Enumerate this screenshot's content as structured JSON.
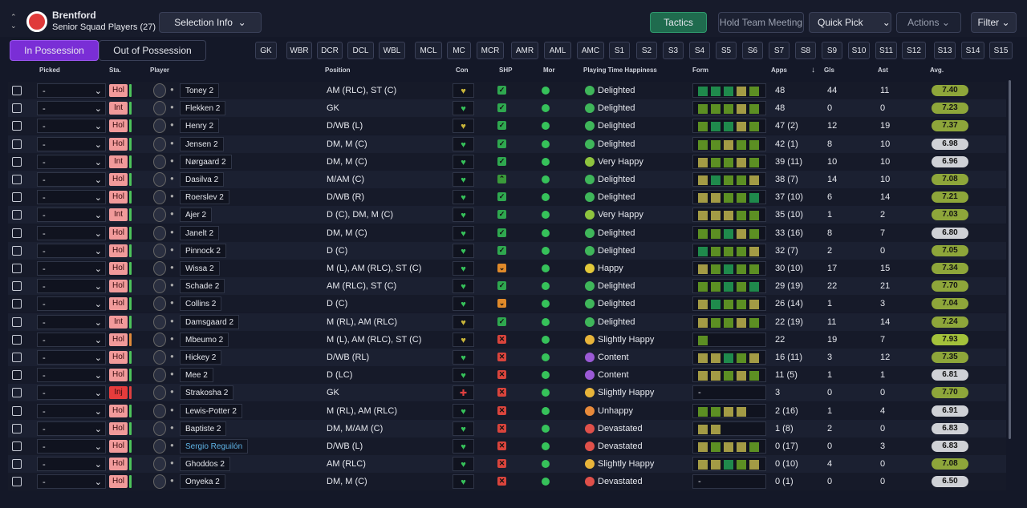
{
  "header": {
    "club": "Brentford",
    "subtitle": "Senior Squad Players (27)"
  },
  "buttons": {
    "selection_info": "Selection Info",
    "tactics": "Tactics",
    "hold_team_meeting": "Hold Team Meeting",
    "quick_pick": "Quick Pick",
    "actions": "Actions",
    "filter": "Filter"
  },
  "tabs": [
    "In Possession",
    "Out of Possession"
  ],
  "positions": [
    "GK",
    "WBR",
    "DCR",
    "DCL",
    "WBL",
    "MCL",
    "MC",
    "MCR",
    "AMR",
    "AML",
    "AMC",
    "S1",
    "S2",
    "S3",
    "S4",
    "S5",
    "S6",
    "S7",
    "S8",
    "S9",
    "S10",
    "S11",
    "S12",
    "S13",
    "S14",
    "S15"
  ],
  "columns": [
    "Picked",
    "Sta.",
    "Player",
    "Position",
    "Con",
    "SHP",
    "Mor",
    "Playing Time Happiness",
    "Form",
    "Apps",
    "Gls",
    "Ast",
    "Avg."
  ],
  "rows": [
    {
      "picked": "-",
      "status": "Hol",
      "status_color": "#f19a9a",
      "cond_color": "#4cc35a",
      "player": "Toney 2",
      "position": "AM (RLC), ST (C)",
      "con_color": "#c9b53a",
      "shp_color": "#2fa84f",
      "happiness": "Delighted",
      "mood_color": "#3fb65a",
      "form": [
        "#1f8a4c",
        "#1f8a4c",
        "#1f8a4c",
        "#a39b45",
        "#5c8f23"
      ],
      "apps": 48,
      "gls": 44,
      "ast": 11,
      "avg": "7.40",
      "avg_color": "#8ea63a"
    },
    {
      "picked": "-",
      "status": "Int",
      "status_color": "#f19a9a",
      "cond_color": "#4cc35a",
      "player": "Flekken 2",
      "position": "GK",
      "con_color": "#36c25a",
      "shp_color": "#2fa84f",
      "happiness": "Delighted",
      "mood_color": "#3fb65a",
      "form": [
        "#5c8f23",
        "#5c8f23",
        "#5c8f23",
        "#a39b45",
        "#5c8f23"
      ],
      "apps": 48,
      "gls": 0,
      "ast": 0,
      "avg": "7.23",
      "avg_color": "#8ea63a"
    },
    {
      "picked": "-",
      "status": "Hol",
      "status_color": "#f19a9a",
      "cond_color": "#4cc35a",
      "player": "Henry 2",
      "position": "D/WB (L)",
      "con_color": "#c9b53a",
      "shp_color": "#2fa84f",
      "happiness": "Delighted",
      "mood_color": "#3fb65a",
      "form": [
        "#5c8f23",
        "#1f8a4c",
        "#1f8a4c",
        "#a39b45",
        "#5c8f23"
      ],
      "apps": "47 (2)",
      "gls": 12,
      "ast": 19,
      "avg": "7.37",
      "avg_color": "#8ea63a"
    },
    {
      "picked": "-",
      "status": "Hol",
      "status_color": "#f19a9a",
      "cond_color": "#4cc35a",
      "player": "Jensen 2",
      "position": "DM, M (C)",
      "con_color": "#36c25a",
      "shp_color": "#2fa84f",
      "happiness": "Delighted",
      "mood_color": "#3fb65a",
      "form": [
        "#5c8f23",
        "#5c8f23",
        "#a39b45",
        "#5c8f23",
        "#5c8f23"
      ],
      "apps": "42 (1)",
      "gls": 8,
      "ast": 10,
      "avg": "6.98",
      "avg_color": "#cfd1d6"
    },
    {
      "picked": "-",
      "status": "Int",
      "status_color": "#f19a9a",
      "cond_color": "#4cc35a",
      "player": "Nørgaard 2",
      "position": "DM, M (C)",
      "con_color": "#36c25a",
      "shp_color": "#2fa84f",
      "happiness": "Very Happy",
      "mood_color": "#8fc43e",
      "form": [
        "#a39b45",
        "#5c8f23",
        "#5c8f23",
        "#a39b45",
        "#5c8f23"
      ],
      "apps": "39 (11)",
      "gls": 10,
      "ast": 10,
      "avg": "6.96",
      "avg_color": "#cfd1d6"
    },
    {
      "picked": "-",
      "status": "Hol",
      "status_color": "#f19a9a",
      "cond_color": "#4cc35a",
      "player": "Dasilva 2",
      "position": "M/AM (C)",
      "con_color": "#36c25a",
      "shp_color": "#3a9a3a",
      "happiness": "Delighted",
      "mood_color": "#3fb65a",
      "form": [
        "#a39b45",
        "#1f8a4c",
        "#5c8f23",
        "#5c8f23",
        "#a39b45"
      ],
      "apps": "38 (7)",
      "gls": 14,
      "ast": 10,
      "avg": "7.08",
      "avg_color": "#8ea63a"
    },
    {
      "picked": "-",
      "status": "Hol",
      "status_color": "#f19a9a",
      "cond_color": "#4cc35a",
      "player": "Roerslev 2",
      "position": "D/WB (R)",
      "con_color": "#36c25a",
      "shp_color": "#2fa84f",
      "happiness": "Delighted",
      "mood_color": "#3fb65a",
      "form": [
        "#a39b45",
        "#a39b45",
        "#5c8f23",
        "#5c8f23",
        "#1f8a4c"
      ],
      "apps": "37 (10)",
      "gls": 6,
      "ast": 14,
      "avg": "7.21",
      "avg_color": "#8ea63a"
    },
    {
      "picked": "-",
      "status": "Int",
      "status_color": "#f19a9a",
      "cond_color": "#4cc35a",
      "player": "Ajer 2",
      "position": "D (C), DM, M (C)",
      "con_color": "#36c25a",
      "shp_color": "#2fa84f",
      "happiness": "Very Happy",
      "mood_color": "#8fc43e",
      "form": [
        "#a39b45",
        "#a39b45",
        "#a39b45",
        "#5c8f23",
        "#5c8f23"
      ],
      "apps": "35 (10)",
      "gls": 1,
      "ast": 2,
      "avg": "7.03",
      "avg_color": "#8ea63a"
    },
    {
      "picked": "-",
      "status": "Hol",
      "status_color": "#f19a9a",
      "cond_color": "#4cc35a",
      "player": "Janelt 2",
      "position": "DM, M (C)",
      "con_color": "#36c25a",
      "shp_color": "#2fa84f",
      "happiness": "Delighted",
      "mood_color": "#3fb65a",
      "form": [
        "#5c8f23",
        "#5c8f23",
        "#1f8a4c",
        "#a39b45",
        "#5c8f23"
      ],
      "apps": "33 (16)",
      "gls": 8,
      "ast": 7,
      "avg": "6.80",
      "avg_color": "#cfd1d6"
    },
    {
      "picked": "-",
      "status": "Hol",
      "status_color": "#f19a9a",
      "cond_color": "#4cc35a",
      "player": "Pinnock 2",
      "position": "D (C)",
      "con_color": "#36c25a",
      "shp_color": "#2fa84f",
      "happiness": "Delighted",
      "mood_color": "#3fb65a",
      "form": [
        "#1f8a4c",
        "#5c8f23",
        "#5c8f23",
        "#5c8f23",
        "#a39b45"
      ],
      "apps": "32 (7)",
      "gls": 2,
      "ast": 0,
      "avg": "7.05",
      "avg_color": "#8ea63a"
    },
    {
      "picked": "-",
      "status": "Hol",
      "status_color": "#f19a9a",
      "cond_color": "#4cc35a",
      "player": "Wissa 2",
      "position": "M (L), AM (RLC), ST (C)",
      "con_color": "#36c25a",
      "shp_color": "#e08a2a",
      "happiness": "Happy",
      "mood_color": "#e3c93a",
      "form": [
        "#a39b45",
        "#5c8f23",
        "#1f8a4c",
        "#5c8f23",
        "#5c8f23"
      ],
      "apps": "30 (10)",
      "gls": 17,
      "ast": 15,
      "avg": "7.34",
      "avg_color": "#8ea63a"
    },
    {
      "picked": "-",
      "status": "Hol",
      "status_color": "#f19a9a",
      "cond_color": "#4cc35a",
      "player": "Schade 2",
      "position": "AM (RLC), ST (C)",
      "con_color": "#36c25a",
      "shp_color": "#2fa84f",
      "happiness": "Delighted",
      "mood_color": "#3fb65a",
      "form": [
        "#5c8f23",
        "#5c8f23",
        "#1f8a4c",
        "#5c8f23",
        "#1f8a4c"
      ],
      "apps": "29 (19)",
      "gls": 22,
      "ast": 21,
      "avg": "7.70",
      "avg_color": "#8ea63a"
    },
    {
      "picked": "-",
      "status": "Hol",
      "status_color": "#f19a9a",
      "cond_color": "#4cc35a",
      "player": "Collins 2",
      "position": "D (C)",
      "con_color": "#36c25a",
      "shp_color": "#e08a2a",
      "happiness": "Delighted",
      "mood_color": "#3fb65a",
      "form": [
        "#a39b45",
        "#1f8a4c",
        "#5c8f23",
        "#5c8f23",
        "#a39b45"
      ],
      "apps": "26 (14)",
      "gls": 1,
      "ast": 3,
      "avg": "7.04",
      "avg_color": "#8ea63a"
    },
    {
      "picked": "-",
      "status": "Int",
      "status_color": "#f19a9a",
      "cond_color": "#4cc35a",
      "player": "Damsgaard 2",
      "position": "M (RL), AM (RLC)",
      "con_color": "#c9b53a",
      "shp_color": "#2fa84f",
      "happiness": "Delighted",
      "mood_color": "#3fb65a",
      "form": [
        "#a39b45",
        "#5c8f23",
        "#5c8f23",
        "#a39b45",
        "#5c8f23"
      ],
      "apps": "22 (19)",
      "gls": 11,
      "ast": 14,
      "avg": "7.24",
      "avg_color": "#8ea63a"
    },
    {
      "picked": "-",
      "status": "Hol",
      "status_color": "#f19a9a",
      "cond_color": "#e08a3a",
      "player": "Mbeumo 2",
      "position": "M (L), AM (RLC), ST (C)",
      "con_color": "#c9b53a",
      "shp_color": "#d9443c",
      "happiness": "Slightly Happy",
      "mood_color": "#e8b43a",
      "form": [
        "#5c8f23"
      ],
      "apps": 22,
      "gls": 19,
      "ast": 7,
      "avg": "7.93",
      "avg_color": "#a4c23b"
    },
    {
      "picked": "-",
      "status": "Hol",
      "status_color": "#f19a9a",
      "cond_color": "#4cc35a",
      "player": "Hickey 2",
      "position": "D/WB (RL)",
      "con_color": "#36c25a",
      "shp_color": "#d9443c",
      "happiness": "Content",
      "mood_color": "#9b5ad6",
      "form": [
        "#a39b45",
        "#a39b45",
        "#1f8a4c",
        "#5c8f23",
        "#a39b45"
      ],
      "apps": "16 (11)",
      "gls": 3,
      "ast": 12,
      "avg": "7.35",
      "avg_color": "#8ea63a"
    },
    {
      "picked": "-",
      "status": "Hol",
      "status_color": "#f19a9a",
      "cond_color": "#4cc35a",
      "player": "Mee 2",
      "position": "D (LC)",
      "con_color": "#36c25a",
      "shp_color": "#d9443c",
      "happiness": "Content",
      "mood_color": "#9b5ad6",
      "form": [
        "#a39b45",
        "#a39b45",
        "#5c8f23",
        "#a39b45",
        "#5c8f23"
      ],
      "apps": "11 (5)",
      "gls": 1,
      "ast": 1,
      "avg": "6.81",
      "avg_color": "#cfd1d6"
    },
    {
      "picked": "-",
      "status": "Inj",
      "status_color": "#e63c3c",
      "cond_color": "#e04040",
      "player": "Strakosha 2",
      "position": "GK",
      "con_color": "#e04040",
      "shp_color": "#d9443c",
      "happiness": "Slightly Happy",
      "mood_color": "#e8b43a",
      "form": "-",
      "apps": 3,
      "gls": 0,
      "ast": 0,
      "avg": "7.70",
      "avg_color": "#8ea63a"
    },
    {
      "picked": "-",
      "status": "Hol",
      "status_color": "#f19a9a",
      "cond_color": "#4cc35a",
      "player": "Lewis-Potter 2",
      "position": "M (RL), AM (RLC)",
      "con_color": "#36c25a",
      "shp_color": "#d9443c",
      "happiness": "Unhappy",
      "mood_color": "#e88a3a",
      "form": [
        "#5c8f23",
        "#5c8f23",
        "#a39b45",
        "#a39b45"
      ],
      "apps": "2 (16)",
      "gls": 1,
      "ast": 4,
      "avg": "6.91",
      "avg_color": "#cfd1d6"
    },
    {
      "picked": "-",
      "status": "Hol",
      "status_color": "#f19a9a",
      "cond_color": "#4cc35a",
      "player": "Baptiste 2",
      "position": "DM, M/AM (C)",
      "con_color": "#36c25a",
      "shp_color": "#d9443c",
      "happiness": "Devastated",
      "mood_color": "#e0504a",
      "form": [
        "#a39b45",
        "#a39b45"
      ],
      "apps": "1 (8)",
      "gls": 2,
      "ast": 0,
      "avg": "6.83",
      "avg_color": "#cfd1d6"
    },
    {
      "picked": "-",
      "status": "Hol",
      "status_color": "#f19a9a",
      "cond_color": "#4cc35a",
      "player": "Sergio Reguilón",
      "name_color": "#5fb4e6",
      "position": "D/WB (L)",
      "con_color": "#36c25a",
      "shp_color": "#d9443c",
      "happiness": "Devastated",
      "mood_color": "#e0504a",
      "form": [
        "#a39b45",
        "#5c8f23",
        "#a39b45",
        "#a39b45",
        "#5c8f23"
      ],
      "apps": "0 (17)",
      "gls": 0,
      "ast": 3,
      "avg": "6.83",
      "avg_color": "#cfd1d6"
    },
    {
      "picked": "-",
      "status": "Hol",
      "status_color": "#f19a9a",
      "cond_color": "#4cc35a",
      "player": "Ghoddos 2",
      "position": "AM (RLC)",
      "con_color": "#36c25a",
      "shp_color": "#d9443c",
      "happiness": "Slightly Happy",
      "mood_color": "#e8b43a",
      "form": [
        "#a39b45",
        "#a39b45",
        "#1f8a4c",
        "#5c8f23",
        "#a39b45"
      ],
      "apps": "0 (10)",
      "gls": 4,
      "ast": 0,
      "avg": "7.08",
      "avg_color": "#8ea63a"
    },
    {
      "picked": "-",
      "status": "Hol",
      "status_color": "#f19a9a",
      "cond_color": "#4cc35a",
      "player": "Onyeka 2",
      "position": "DM, M (C)",
      "con_color": "#36c25a",
      "shp_color": "#d9443c",
      "happiness": "Devastated",
      "mood_color": "#e0504a",
      "form": "-",
      "apps": "0 (1)",
      "gls": 0,
      "ast": 0,
      "avg": "6.50",
      "avg_color": "#cfd1d6"
    }
  ]
}
